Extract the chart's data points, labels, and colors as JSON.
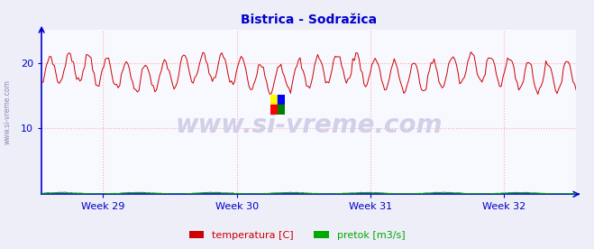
{
  "title": "Bistrica - Sodražica",
  "title_color": "#0000cc",
  "title_fontsize": 10,
  "bg_color": "#eeeef8",
  "plot_bg_color": "#f8f8ff",
  "grid_color": "#ffaaaa",
  "grid_linestyle": ":",
  "axis_color": "#0000cc",
  "watermark_text": "www.si-vreme.com",
  "watermark_color": "#d0d0e8",
  "watermark_fontsize": 20,
  "side_label": "www.si-vreme.com",
  "side_label_color": "#8888bb",
  "side_label_fontsize": 5.5,
  "ylim": [
    0,
    25
  ],
  "yticks": [
    10,
    20
  ],
  "xtick_labels": [
    "Week 29",
    "Week 30",
    "Week 31",
    "Week 32"
  ],
  "xtick_positions": [
    0.115,
    0.365,
    0.615,
    0.865
  ],
  "temp_color": "#cc0000",
  "pretok_color": "#00aa00",
  "pretok_ylim": [
    0,
    25
  ],
  "legend_labels": [
    "temperatura [C]",
    "pretok [m3/s]"
  ],
  "legend_colors": [
    "#cc0000",
    "#00aa00"
  ],
  "n_points": 336,
  "temp_mean": 18.5,
  "temp_amp_day": 2.2,
  "temp_amp_week": 0.8,
  "temp_period_day": 12,
  "temp_period_week": 84,
  "pretok_base": 0.15,
  "pretok_amp": 0.1
}
